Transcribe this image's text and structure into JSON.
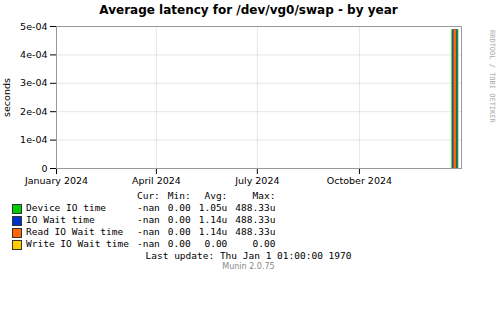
{
  "chart_data": {
    "type": "bar",
    "title": "Average latency for /dev/vg0/swap - by year",
    "ylabel": "seconds",
    "x": [
      1703548800
    ],
    "xlim": [
      1672531200,
      1704067200
    ],
    "xticks": [
      {
        "value": 1672531200,
        "label": "January 2024"
      },
      {
        "value": 1680307200,
        "label": "April 2024"
      },
      {
        "value": 1688169600,
        "label": "July 2024"
      },
      {
        "value": 1696118400,
        "label": "October 2024"
      }
    ],
    "ylim": [
      0,
      0.0005
    ],
    "yticks": [
      0,
      {
        "value": 0.0001,
        "label": "1e-04"
      },
      {
        "value": 0.0002,
        "label": "2e-04"
      },
      {
        "value": 0.0003,
        "label": "3e-04"
      },
      {
        "value": 0.0004,
        "label": "4e-04"
      },
      {
        "value": 0.0005,
        "label": "5e-04"
      }
    ],
    "grid": true,
    "series": [
      {
        "name": "Device IO time",
        "color": "#00cc00",
        "values": [
          0.00048833
        ]
      },
      {
        "name": "IO Wait time",
        "color": "#0033cc",
        "values": [
          0.00048833
        ]
      },
      {
        "name": "Read IO Wait time",
        "color": "#ff6600",
        "values": [
          0.00048833
        ]
      },
      {
        "name": "Write IO Wait time",
        "color": "#ffcc00",
        "values": [
          0.0
        ]
      }
    ],
    "legend_table": {
      "columns": [
        "Cur:",
        "Min:",
        "Avg:",
        "Max:"
      ],
      "rows": [
        [
          "-nan",
          "0.00",
          "1.05u",
          "488.33u"
        ],
        [
          "-nan",
          "0.00",
          "1.14u",
          "488.33u"
        ],
        [
          "-nan",
          "0.00",
          "1.14u",
          "488.33u"
        ],
        [
          "-nan",
          "0.00",
          "0.00",
          "0.00"
        ]
      ]
    },
    "footer": [
      "Last update: Thu Jan  1 01:00:00 1970"
    ],
    "version": "Munin 2.0.75",
    "watermark": "RRDTOOL / TOBI OETIKER"
  }
}
